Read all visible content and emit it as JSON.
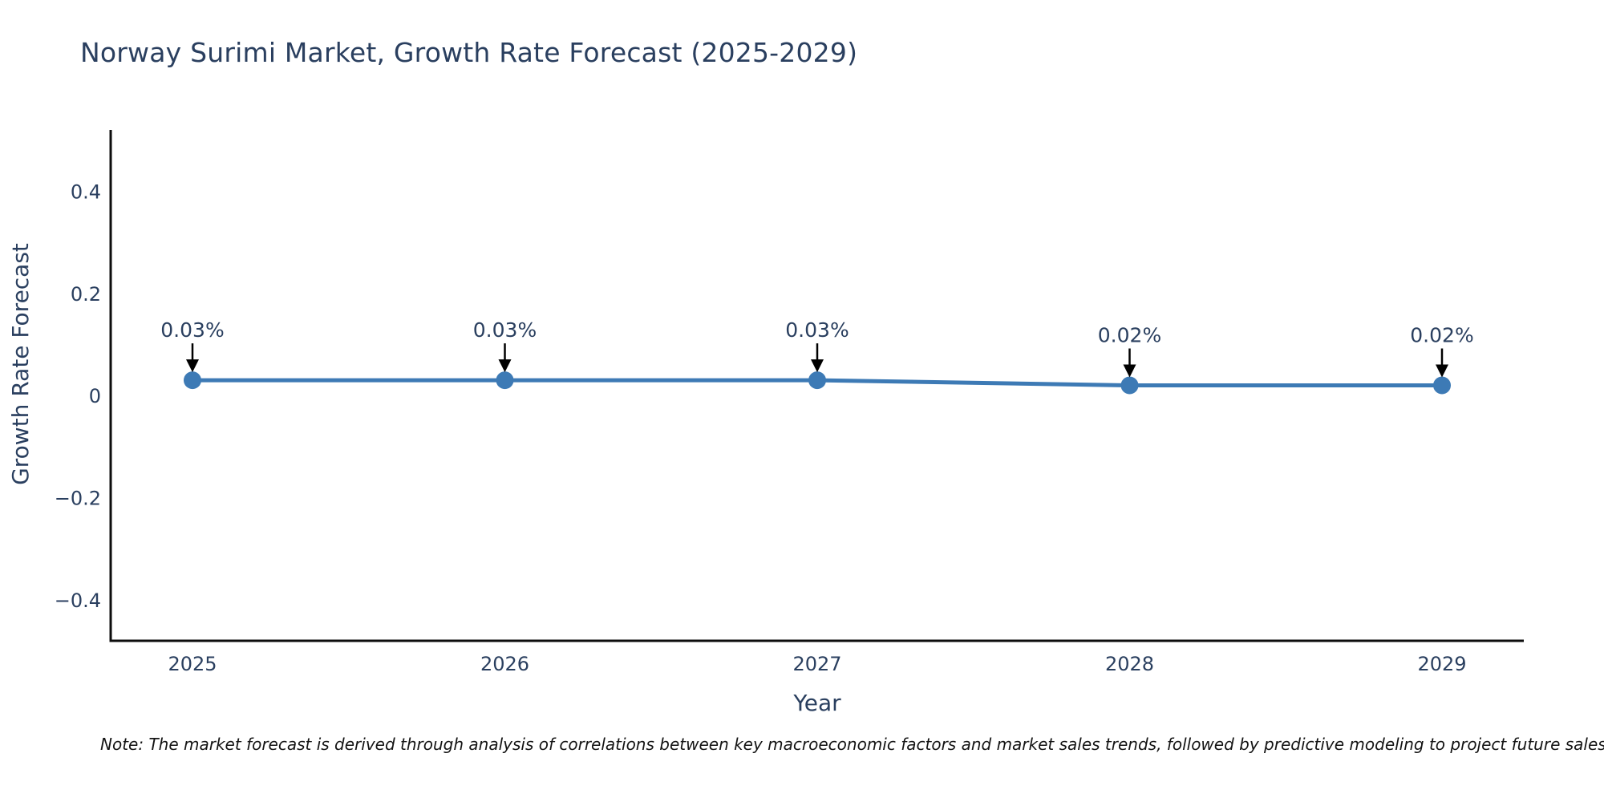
{
  "chart_data": {
    "type": "line",
    "title": "Norway Surimi Market, Growth Rate Forecast (2025-2029)",
    "xlabel": "Year",
    "ylabel": "Growth Rate Forecast",
    "x": [
      2025,
      2026,
      2027,
      2028,
      2029
    ],
    "xtick_labels": [
      "2025",
      "2026",
      "2027",
      "2028",
      "2029"
    ],
    "series": [
      {
        "name": "Growth Rate Forecast",
        "values": [
          0.03,
          0.03,
          0.03,
          0.02,
          0.02
        ]
      }
    ],
    "point_labels": [
      "0.03%",
      "0.03%",
      "0.03%",
      "0.02%",
      "0.02%"
    ],
    "ylim": [
      -0.48,
      0.52
    ],
    "yticks": [
      0.4,
      0.2,
      0,
      -0.2,
      -0.4
    ],
    "ytick_labels": [
      "0.4",
      "0.2",
      "0",
      "−0.2",
      "−0.4"
    ],
    "grid": false,
    "legend": "none",
    "line_color": "#3d7ab5",
    "marker_color": "#3d7ab5",
    "arrow_color": "#000000",
    "axis_color": "#0d0d0d",
    "font_color": "#2a3f5f"
  },
  "footnote": {
    "text": "Note: The market forecast is derived through analysis of correlations between key macroeconomic factors and market sales trends, followed by predictive modeling to project future sales."
  }
}
